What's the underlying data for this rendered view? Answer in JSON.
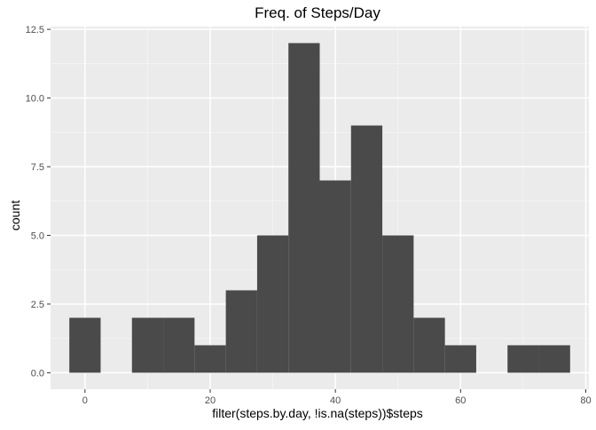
{
  "chart_data": {
    "type": "bar",
    "title": "Freq. of Steps/Day",
    "xlabel": "filter(steps.by.day, !is.na(steps))$steps",
    "ylabel": "count",
    "binwidth": 5,
    "bins": [
      {
        "center": 0,
        "count": 2
      },
      {
        "center": 5,
        "count": 0
      },
      {
        "center": 10,
        "count": 2
      },
      {
        "center": 15,
        "count": 2
      },
      {
        "center": 20,
        "count": 1
      },
      {
        "center": 25,
        "count": 3
      },
      {
        "center": 30,
        "count": 5
      },
      {
        "center": 35,
        "count": 12
      },
      {
        "center": 40,
        "count": 7
      },
      {
        "center": 45,
        "count": 9
      },
      {
        "center": 50,
        "count": 5
      },
      {
        "center": 55,
        "count": 2
      },
      {
        "center": 60,
        "count": 1
      },
      {
        "center": 65,
        "count": 0
      },
      {
        "center": 70,
        "count": 1
      },
      {
        "center": 75,
        "count": 1
      }
    ],
    "xlim": [
      -5.5,
      80.5
    ],
    "ylim": [
      -0.6,
      12.6
    ],
    "xticks": [
      0,
      20,
      40,
      60,
      80
    ],
    "xtick_labels": [
      "0",
      "20",
      "40",
      "60",
      "80"
    ],
    "yticks": [
      0,
      2.5,
      5,
      7.5,
      10,
      12.5
    ],
    "ytick_labels": [
      "0.0",
      "2.5",
      "5.0",
      "7.5",
      "10.0",
      "12.5"
    ],
    "grid": true,
    "colors": {
      "panel": "#ebebeb",
      "bar": "#4a4a4a",
      "grid_major": "#ffffff",
      "grid_minor": "#f5f5f5",
      "tick_text": "#4d4d4d",
      "label_text": "#000000"
    }
  }
}
